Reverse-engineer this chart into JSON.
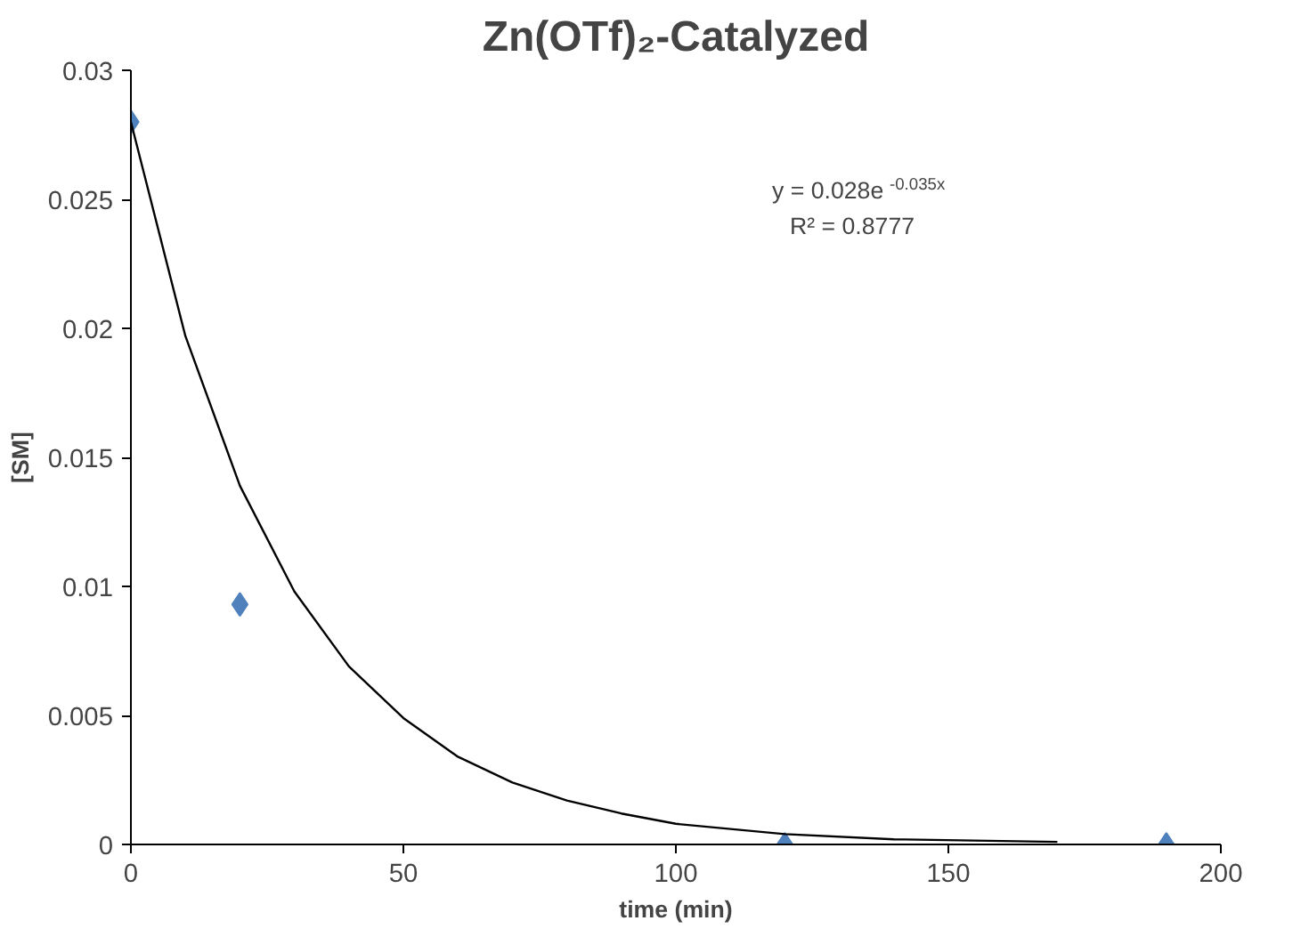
{
  "chart_data": {
    "type": "scatter",
    "title": "Zn(OTf)₂-Catalyzed",
    "xlabel": "time (min)",
    "ylabel": "[SM]",
    "xlim": [
      0,
      200
    ],
    "xticks": [
      0,
      50,
      100,
      150,
      200
    ],
    "ylim": [
      0,
      0.03
    ],
    "yticks": [
      0,
      0.005,
      0.01,
      0.015,
      0.02,
      0.025,
      0.03
    ],
    "grid": false,
    "annotations": [
      "y = 0.028e$^{-0.035x}$",
      "R² = 0.8777"
    ],
    "series": [
      {
        "color": "#4f81bd",
        "marker": "diamond",
        "x": [
          0,
          20,
          120,
          190
        ],
        "values": [
          0.028,
          0.0093,
          0,
          0
        ]
      },
      {
        "type": "line",
        "color": "#000000",
        "marker": "none",
        "line_style": "solid",
        "x": [
          0,
          10,
          20,
          30,
          40,
          50,
          60,
          70,
          80,
          90,
          100,
          120,
          140,
          170
        ],
        "values": [
          0.028,
          0.0197,
          0.0139,
          0.0098,
          0.0069,
          0.0049,
          0.0034,
          0.0024,
          0.0017,
          0.0012,
          0.0008,
          0.0004,
          0.0002,
          0.0001
        ]
      }
    ]
  }
}
